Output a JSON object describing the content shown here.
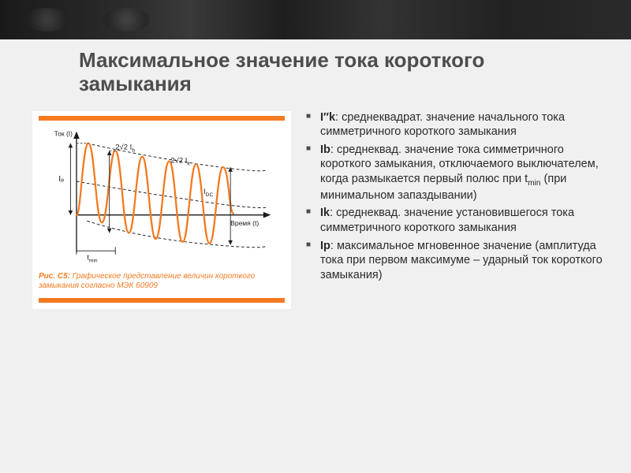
{
  "title": "Максимальное значение тока короткого замыкания",
  "figure": {
    "bar_color": "#f47a20",
    "axis_color": "#1a1a1a",
    "y_label": "Ток (I)",
    "x_label": "Время (t)",
    "labels": {
      "Ip": "Iₚ",
      "two_root2_Ib": "2√2 I_b",
      "two_root2_Ik": "2√2 I_k",
      "Idc": "I_DC",
      "tmin": "t_min"
    },
    "caption_prefix": "Рис. C5:",
    "caption_text": "Графическое представление величин короткого замыкания согласно МЭК 60909",
    "wave": {
      "color": "#f47a20",
      "stroke_width": 2.2,
      "envelope_dash": "4,3",
      "dc_dash": "4,3"
    }
  },
  "defs": [
    {
      "term": "I″k",
      "text": ": среднеквадрат. значение начального тока симметричного короткого замыкания"
    },
    {
      "term": "Ib",
      "text": ": среднеквад. значение тока симметричного короткого замыкания, отключаемого выключателем, когда размыкается первый полюс при t",
      "sub": "min",
      "tail": " (при минимальном запаздывании)"
    },
    {
      "term": "Ik",
      "text": ": среднеквад. значение установившегося тока симметричного короткого замыкания"
    },
    {
      "term": "Ip",
      "text": ": максимальное мгновенное значение (амплитуда тока при первом максимуме – ударный ток короткого замыкания)"
    }
  ]
}
